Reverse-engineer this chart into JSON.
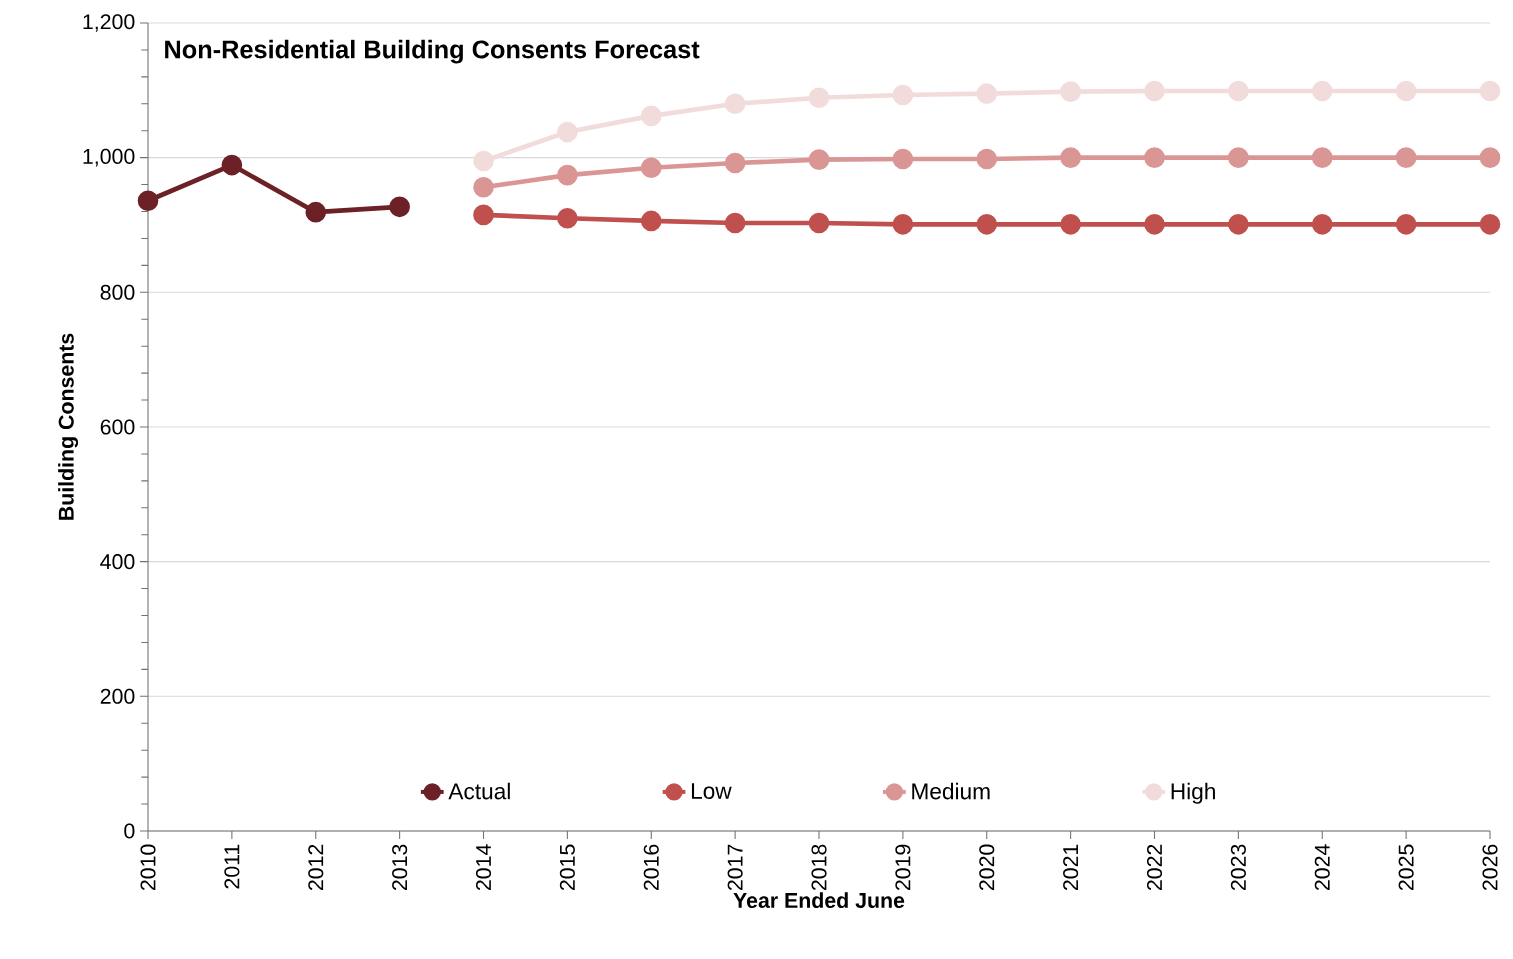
{
  "chart_data": {
    "type": "line",
    "title": "Non-Residential Building Consents Forecast",
    "xlabel": "Year Ended June",
    "ylabel": "Building Consents",
    "categories": [
      "2010",
      "2011",
      "2012",
      "2013",
      "2014",
      "2015",
      "2016",
      "2017",
      "2018",
      "2019",
      "2020",
      "2021",
      "2022",
      "2023",
      "2024",
      "2025",
      "2026"
    ],
    "series": [
      {
        "name": "Actual",
        "color": "#6b2126",
        "values": [
          936,
          989,
          919,
          927,
          null,
          null,
          null,
          null,
          null,
          null,
          null,
          null,
          null,
          null,
          null,
          null,
          null
        ]
      },
      {
        "name": "Low",
        "color": "#c0504d",
        "values": [
          null,
          null,
          null,
          null,
          915,
          910,
          906,
          903,
          903,
          901,
          901,
          901,
          901,
          901,
          901,
          901,
          901
        ]
      },
      {
        "name": "Medium",
        "color": "#d99694",
        "values": [
          null,
          null,
          null,
          null,
          956,
          974,
          985,
          992,
          997,
          998,
          998,
          1000,
          1000,
          1000,
          1000,
          1000,
          1000
        ]
      },
      {
        "name": "High",
        "color": "#f2dcdb",
        "values": [
          null,
          null,
          null,
          null,
          995,
          1038,
          1062,
          1080,
          1089,
          1093,
          1095,
          1098,
          1099,
          1099,
          1099,
          1099,
          1099
        ]
      }
    ],
    "ylim": [
      0,
      1200
    ],
    "yticks": [
      0,
      {
        "value": 200,
        "label": "200"
      },
      {
        "value": 400,
        "label": "400"
      },
      {
        "value": 600,
        "label": "600"
      },
      {
        "value": 800,
        "label": "800"
      },
      {
        "value": 1000,
        "label": "1,000"
      },
      {
        "value": 1200,
        "label": "1,200"
      }
    ],
    "grid": "y",
    "legend": "bottom",
    "marker": "circle",
    "line_style": "solid"
  }
}
